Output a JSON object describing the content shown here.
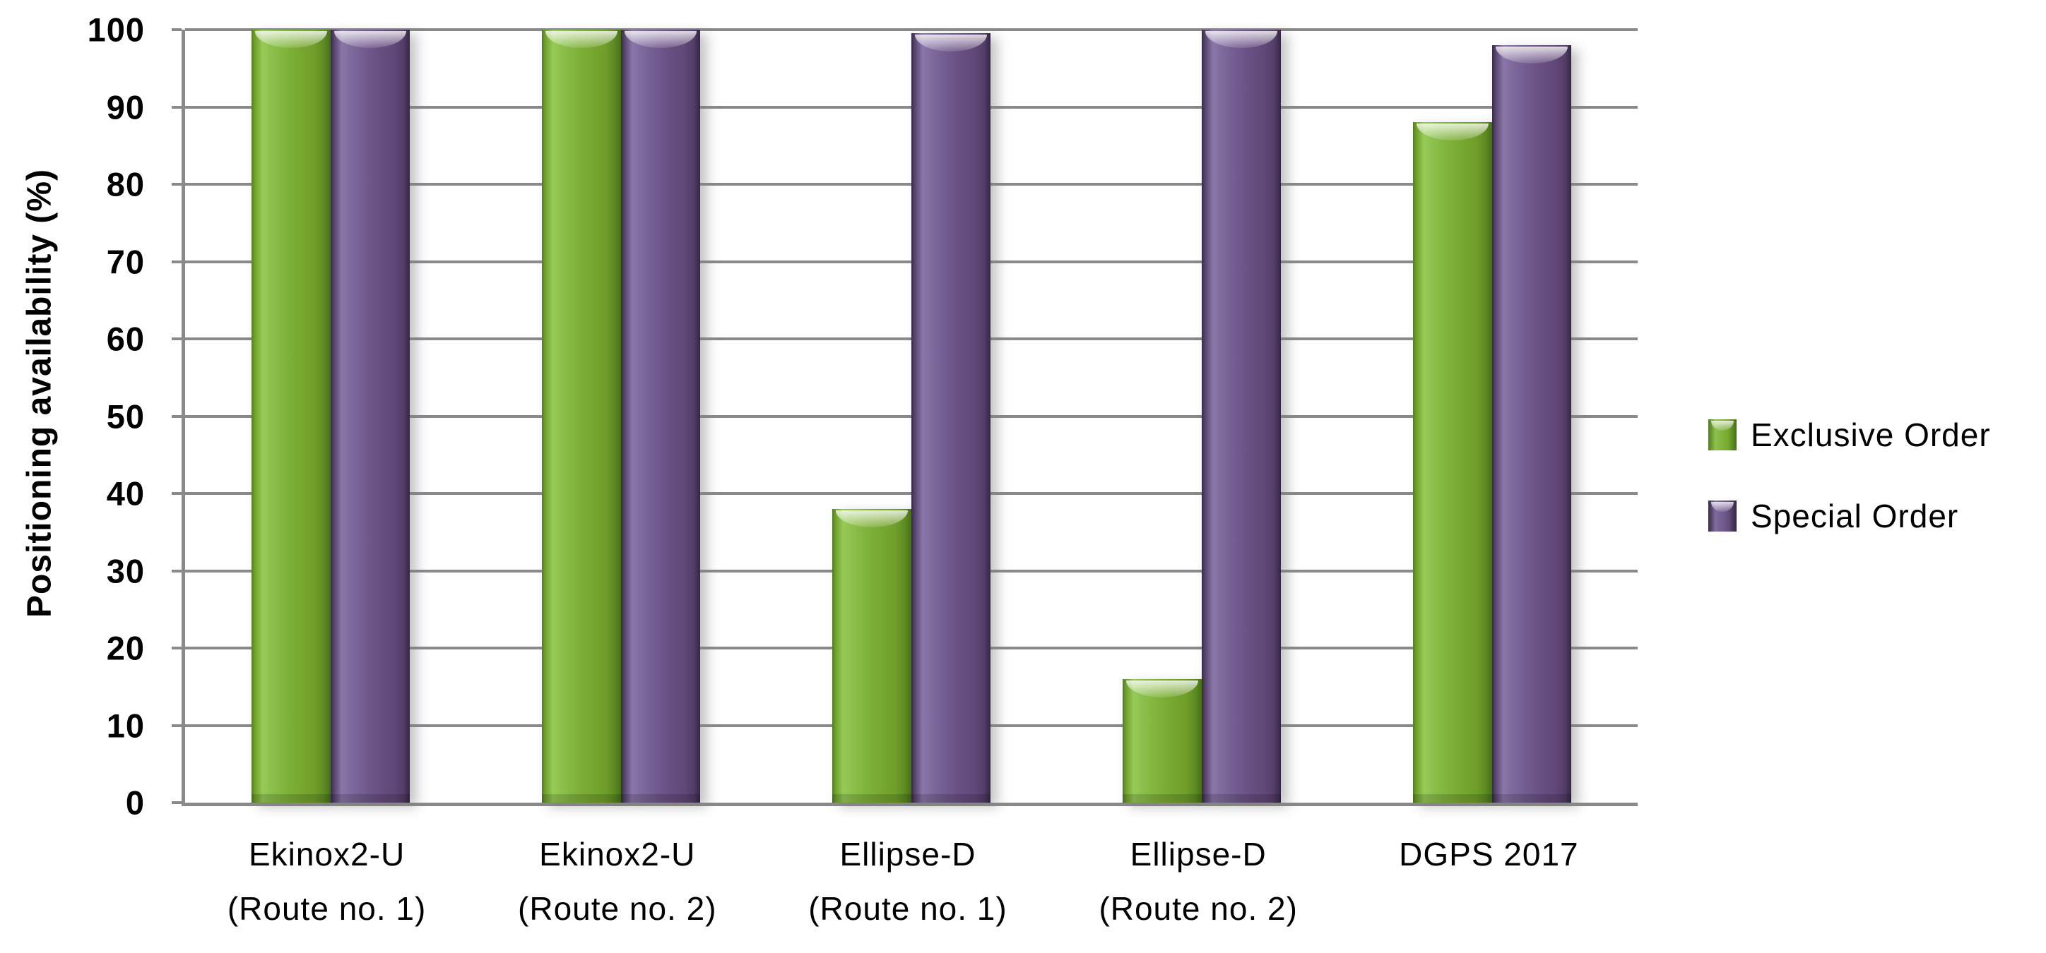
{
  "chart_data": {
    "type": "bar",
    "title": "",
    "xlabel": "",
    "ylabel": "Positioning availability (%)",
    "ylim": [
      0,
      100
    ],
    "ytick_step": 10,
    "grid": "horizontal",
    "legend_position": "right",
    "categories": [
      "Ekinox2-U\n(Route no. 1)",
      "Ekinox2-U\n(Route no. 2)",
      "Ellipse-D\n(Route no. 1)",
      "Ellipse-D\n(Route no. 2)",
      "DGPS 2017"
    ],
    "series": [
      {
        "name": "Exclusive Order",
        "color": "#7fb23a",
        "values": [
          100,
          100,
          38,
          16,
          88
        ]
      },
      {
        "name": "Special Order",
        "color": "#715a8d",
        "values": [
          100,
          100,
          99.5,
          100,
          98
        ]
      }
    ]
  },
  "colors": {
    "gridline": "#8a8a8a",
    "text": "#000000",
    "background": "#ffffff"
  }
}
